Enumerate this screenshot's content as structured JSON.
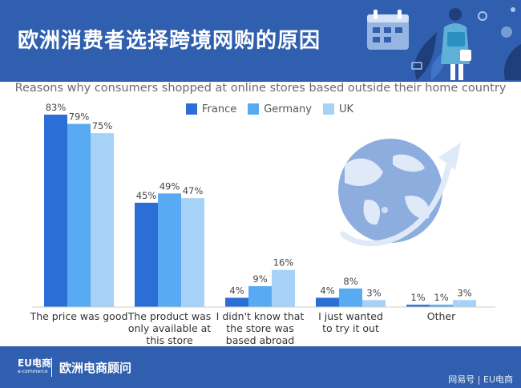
{
  "header": {
    "title": "欧洲消费者选择跨境网购的原因"
  },
  "footer": {
    "logo_text": "EU电商",
    "logo_sub": "e-commerce",
    "brand": "欧洲电商顾问",
    "watermark": "网易号 | EU电商"
  },
  "colors": {
    "header_bg": "#2f5fae",
    "france": "#2b6fd6",
    "germany": "#58abf2",
    "uk": "#a6d2f8",
    "globe": "#7fa3d9"
  },
  "chart_data": {
    "type": "bar",
    "title": "Reasons why consumers shopped at online stores based outside their home country",
    "categories": [
      [
        "The price was good"
      ],
      [
        "The product was",
        "only available at",
        "this store"
      ],
      [
        "I didn't know that",
        "the store was",
        "based abroad"
      ],
      [
        "I just wanted",
        "to try it out"
      ],
      [
        "Other"
      ]
    ],
    "series": [
      {
        "name": "France",
        "values": [
          83,
          45,
          4,
          4,
          1
        ],
        "labels": [
          "83%",
          "45%",
          "4%",
          "4%",
          "1%"
        ]
      },
      {
        "name": "Germany",
        "values": [
          79,
          49,
          9,
          8,
          1
        ],
        "labels": [
          "79%",
          "49%",
          "9%",
          "8%",
          "1%"
        ]
      },
      {
        "name": "UK",
        "values": [
          75,
          47,
          16,
          3,
          3
        ],
        "labels": [
          "75%",
          "47%",
          "16%",
          "3%",
          "3%"
        ]
      }
    ],
    "ylim": [
      0,
      100
    ],
    "grid": false,
    "legend": "top"
  }
}
